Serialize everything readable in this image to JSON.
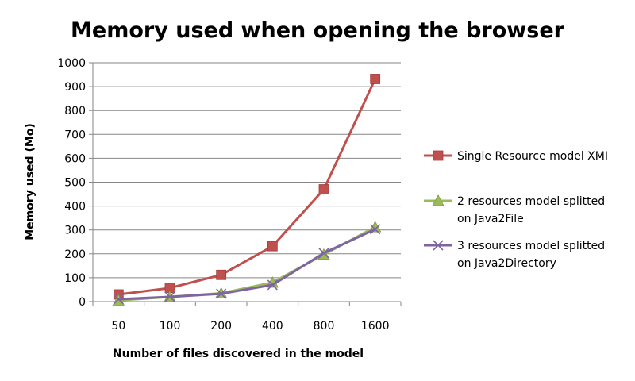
{
  "chart_data": {
    "type": "line",
    "title": "Memory used when opening the browser",
    "xlabel": "Number of files discovered in the model",
    "ylabel": "Memory  used (Mo)",
    "categories": [
      "50",
      "100",
      "200",
      "400",
      "800",
      "1600"
    ],
    "ylim": [
      0,
      1000
    ],
    "yticks": [
      0,
      100,
      200,
      300,
      400,
      500,
      600,
      700,
      800,
      900,
      1000
    ],
    "grid": "horizontal",
    "legend_position": "right",
    "series": [
      {
        "name": "Single Resource model XMI",
        "legend_lines": [
          "Single Resource model XMI"
        ],
        "color": "#c0504d",
        "marker": "square",
        "values": [
          30,
          57,
          112,
          232,
          470,
          932
        ]
      },
      {
        "name": "2 resources model splitted on Java2File",
        "legend_lines": [
          "2 resources model splitted",
          "on Java2File"
        ],
        "color": "#9bbb59",
        "marker": "triangle",
        "values": [
          5,
          20,
          35,
          80,
          197,
          312
        ]
      },
      {
        "name": "3 resources model splitted on Java2Directory",
        "legend_lines": [
          "3 resources model splitted",
          "on Java2Directory"
        ],
        "color": "#8064a2",
        "marker": "x",
        "values": [
          10,
          20,
          33,
          70,
          203,
          303
        ]
      }
    ]
  }
}
